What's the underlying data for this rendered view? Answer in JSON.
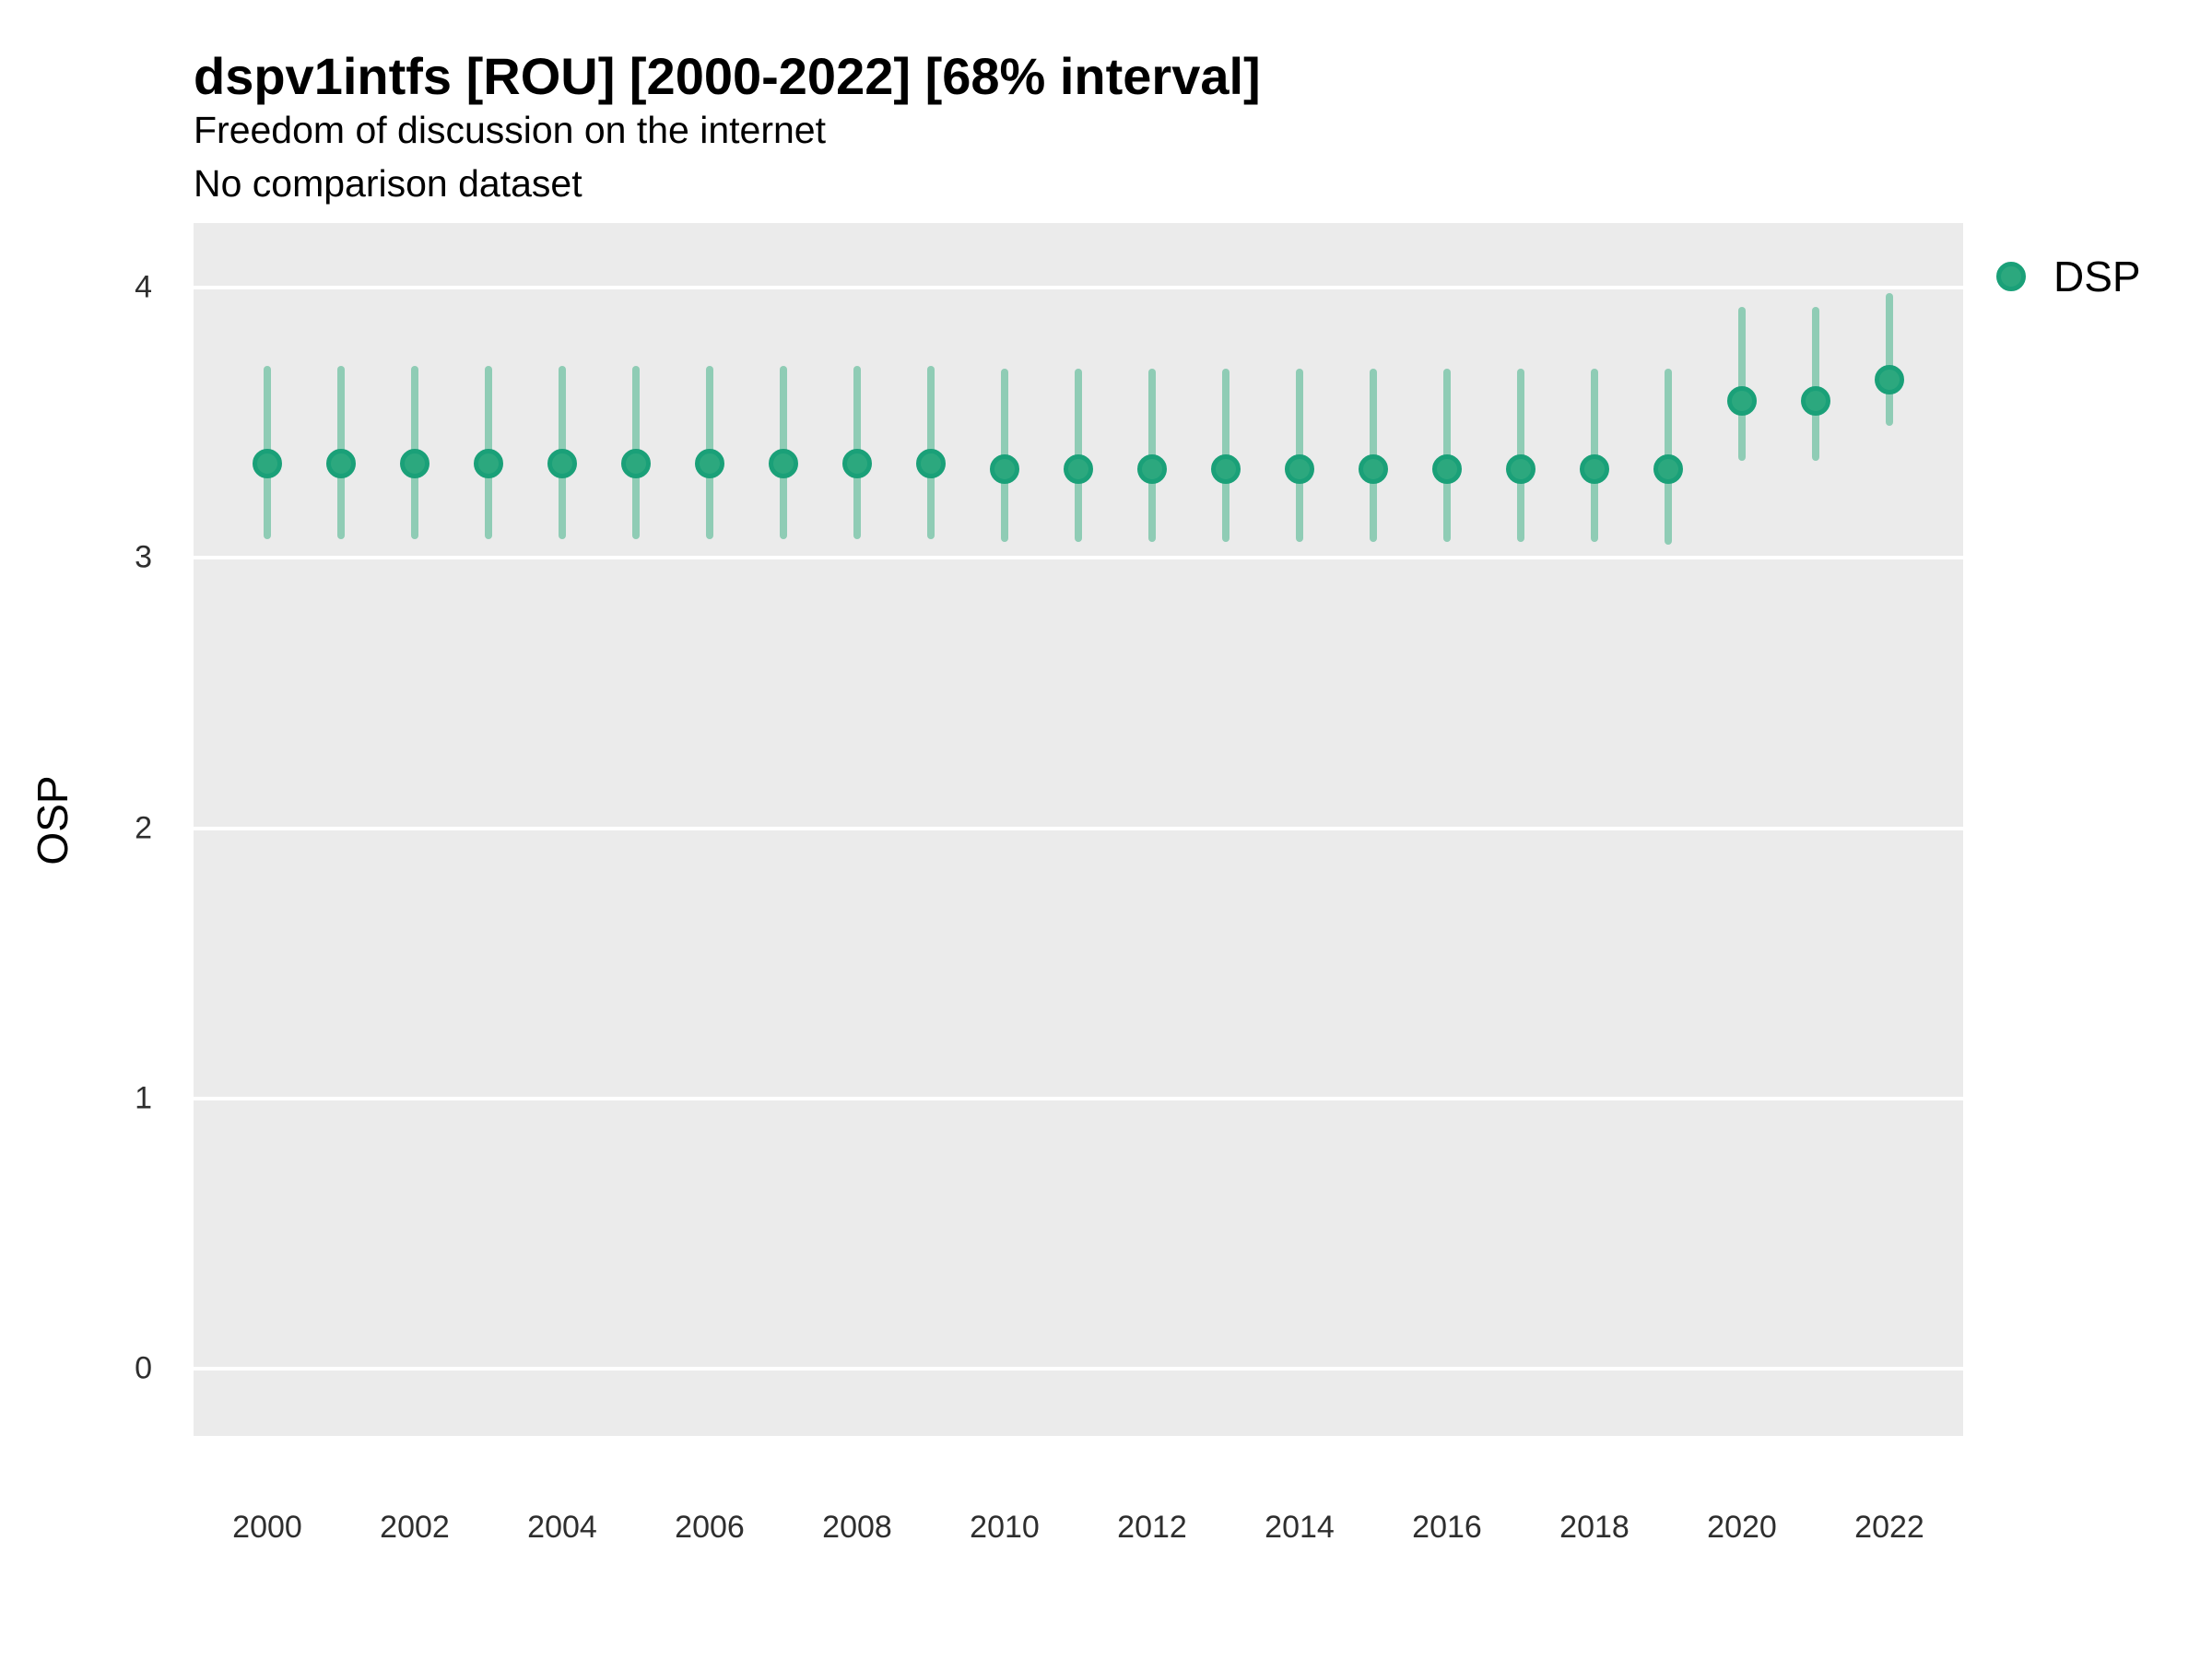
{
  "header": {
    "title": "dspv1intfs [ROU] [2000-2022] [68% interval]",
    "subtitle": "Freedom of discussion on the internet",
    "note": "No comparison dataset"
  },
  "legend": {
    "label": "DSP"
  },
  "axis": {
    "y_title": "OSP"
  },
  "colors": {
    "point_fill": "#2ca87e",
    "point_stroke": "#1aa078",
    "interval_bar": "#8fccb5",
    "panel_background": "#ebebeb",
    "gridline": "#ffffff",
    "tick_text": "#2e2e2e"
  },
  "chart_data": {
    "type": "pointrange",
    "title": "dspv1intfs [ROU] [2000-2022] [68% interval]",
    "subtitle": "Freedom of discussion on the internet",
    "note": "No comparison dataset",
    "ylabel": "OSP",
    "xlabel": "",
    "interval_level": "68%",
    "legend_position": "right",
    "grid": "horizontal-major-white",
    "x": [
      2000,
      2001,
      2002,
      2003,
      2004,
      2005,
      2006,
      2007,
      2008,
      2009,
      2010,
      2011,
      2012,
      2013,
      2014,
      2015,
      2016,
      2017,
      2018,
      2019,
      2020,
      2021,
      2022
    ],
    "series": [
      {
        "name": "DSP",
        "values": [
          3.35,
          3.35,
          3.35,
          3.35,
          3.35,
          3.35,
          3.35,
          3.35,
          3.35,
          3.35,
          3.33,
          3.33,
          3.33,
          3.33,
          3.33,
          3.33,
          3.33,
          3.33,
          3.33,
          3.33,
          3.58,
          3.58,
          3.66
        ],
        "lower": [
          3.07,
          3.07,
          3.07,
          3.07,
          3.07,
          3.07,
          3.07,
          3.07,
          3.07,
          3.07,
          3.06,
          3.06,
          3.06,
          3.06,
          3.06,
          3.06,
          3.06,
          3.06,
          3.06,
          3.05,
          3.36,
          3.36,
          3.49
        ],
        "upper": [
          3.71,
          3.71,
          3.71,
          3.71,
          3.71,
          3.71,
          3.71,
          3.71,
          3.71,
          3.71,
          3.7,
          3.7,
          3.7,
          3.7,
          3.7,
          3.7,
          3.7,
          3.7,
          3.7,
          3.7,
          3.93,
          3.93,
          3.98
        ]
      }
    ],
    "x_ticks": [
      2000,
      2002,
      2004,
      2006,
      2008,
      2010,
      2012,
      2014,
      2016,
      2018,
      2020,
      2022
    ],
    "y_ticks": [
      0,
      1,
      2,
      3,
      4
    ],
    "xlim": [
      1999,
      2023
    ],
    "ylim": [
      -0.25,
      4.24
    ]
  }
}
